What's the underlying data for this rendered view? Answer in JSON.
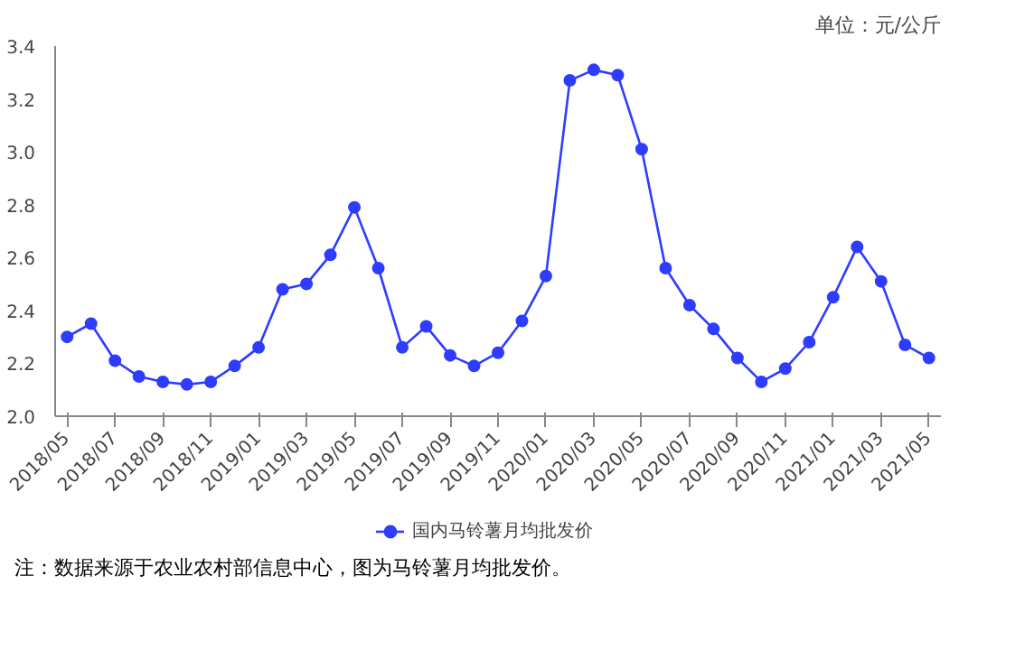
{
  "chart_data": {
    "type": "line",
    "categories": [
      "2018/05",
      null,
      "2018/07",
      null,
      "2018/09",
      null,
      "2018/11",
      null,
      "2019/01",
      null,
      "2019/03",
      null,
      "2019/05",
      null,
      "2019/07",
      null,
      "2019/09",
      null,
      "2019/11",
      null,
      "2020/01",
      null,
      "2020/03",
      null,
      "2020/05",
      null,
      "2020/07",
      null,
      "2020/09",
      null,
      "2020/11",
      null,
      "2021/01",
      null,
      "2021/03",
      null,
      "2021/05"
    ],
    "series": [
      {
        "name": "国内马铃薯月均批发价",
        "color": "#2e3cff",
        "values": [
          2.3,
          2.35,
          2.21,
          2.15,
          2.13,
          2.12,
          2.13,
          2.19,
          2.26,
          2.48,
          2.5,
          2.61,
          2.79,
          2.56,
          2.26,
          2.34,
          2.23,
          2.19,
          2.24,
          2.36,
          2.53,
          3.27,
          3.31,
          3.29,
          3.01,
          2.56,
          2.42,
          2.33,
          2.22,
          2.13,
          2.18,
          2.28,
          2.45,
          2.64,
          2.51,
          2.27,
          2.22
        ]
      }
    ],
    "ylim": [
      2.0,
      3.4
    ],
    "yticks": [
      {
        "value": 2.0,
        "label": "2.0"
      },
      2.2,
      2.4,
      2.6,
      2.8,
      {
        "value": 3.0,
        "label": "3.0"
      },
      3.2,
      3.4
    ],
    "marker": "circle",
    "grid": false,
    "legend": "bottom",
    "annotations": [
      "单位：元/公斤",
      "注：数据来源于农业农村部信息中心，图为马铃薯月均批发价。"
    ]
  }
}
